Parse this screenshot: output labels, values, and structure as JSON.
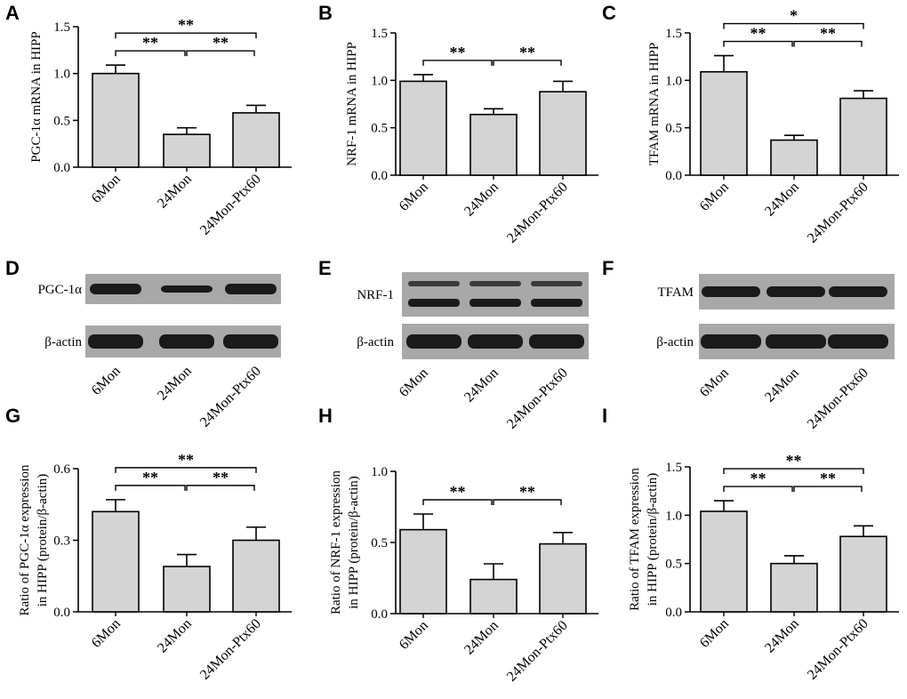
{
  "figure": {
    "panels_bar": [
      {
        "letter": "A",
        "ylabel": [
          "PGC-1α mRNA in HIPP"
        ]
      },
      {
        "letter": "B",
        "ylabel": [
          "NRF-1 mRNA in HIPP"
        ]
      },
      {
        "letter": "C",
        "ylabel": [
          "TFAM mRNA in HIPP"
        ]
      },
      {
        "letter": "G",
        "ylabel": [
          "Ratio of PGC-1α expression",
          "in HIPP (protein/β-actin)"
        ]
      },
      {
        "letter": "H",
        "ylabel": [
          "Ratio of NRF-1 expression",
          "in HIPP (protein/β-actin)"
        ]
      },
      {
        "letter": "I",
        "ylabel": [
          "Ratio of TFAM expression",
          "in HIPP (protein/β-actin)"
        ]
      }
    ],
    "panels_blot": [
      {
        "letter": "D",
        "target_label": "PGC-1α",
        "control_label": "β-actin"
      },
      {
        "letter": "E",
        "target_label": "NRF-1",
        "control_label": "β-actin"
      },
      {
        "letter": "F",
        "target_label": "TFAM",
        "control_label": "β-actin"
      }
    ]
  },
  "chart_data": [
    {
      "type": "bar",
      "categories": [
        "6Mon",
        "24Mon",
        "24Mon-Ptx60"
      ],
      "values": [
        1.0,
        0.35,
        0.58
      ],
      "errors": [
        0.09,
        0.07,
        0.08
      ],
      "ylim": [
        0,
        1.5
      ],
      "yticks": [
        "0.0",
        "0.5",
        "1.0",
        "1.5"
      ],
      "ylabel": "PGC-1α mRNA in HIPP",
      "significance": [
        {
          "from": 0,
          "to": 2,
          "label": "**"
        },
        {
          "from": 0,
          "to": 1,
          "label": "**"
        },
        {
          "from": 1,
          "to": 2,
          "label": "**"
        }
      ]
    },
    {
      "type": "bar",
      "categories": [
        "6Mon",
        "24Mon",
        "24Mon-Ptx60"
      ],
      "values": [
        0.99,
        0.64,
        0.88
      ],
      "errors": [
        0.07,
        0.06,
        0.11
      ],
      "ylim": [
        0,
        1.5
      ],
      "yticks": [
        "0.0",
        "0.5",
        "1.0",
        "1.5"
      ],
      "ylabel": "NRF-1 mRNA in HIPP",
      "significance": [
        {
          "from": 0,
          "to": 1,
          "label": "**"
        },
        {
          "from": 1,
          "to": 2,
          "label": "**"
        }
      ]
    },
    {
      "type": "bar",
      "categories": [
        "6Mon",
        "24Mon",
        "24Mon-Ptx60"
      ],
      "values": [
        1.09,
        0.37,
        0.81
      ],
      "errors": [
        0.17,
        0.05,
        0.08
      ],
      "ylim": [
        0,
        1.5
      ],
      "yticks": [
        "0.0",
        "0.5",
        "1.0",
        "1.5"
      ],
      "ylabel": "TFAM mRNA in HIPP",
      "significance": [
        {
          "from": 0,
          "to": 2,
          "label": "*"
        },
        {
          "from": 0,
          "to": 1,
          "label": "**"
        },
        {
          "from": 1,
          "to": 2,
          "label": "**"
        }
      ]
    },
    {
      "type": "bar",
      "categories": [
        "6Mon",
        "24Mon",
        "24Mon-Ptx60"
      ],
      "values": [
        0.42,
        0.19,
        0.3
      ],
      "errors": [
        0.05,
        0.05,
        0.055
      ],
      "ylim": [
        0,
        0.6
      ],
      "yticks": [
        "0.0",
        "0.3",
        "0.6"
      ],
      "ylabel": "Ratio of PGC-1α expression in HIPP (protein/β-actin)",
      "significance": [
        {
          "from": 0,
          "to": 2,
          "label": "**"
        },
        {
          "from": 0,
          "to": 1,
          "label": "**"
        },
        {
          "from": 1,
          "to": 2,
          "label": "**"
        }
      ]
    },
    {
      "type": "bar",
      "categories": [
        "6Mon",
        "24Mon",
        "24Mon-Ptx60"
      ],
      "values": [
        0.59,
        0.24,
        0.49
      ],
      "errors": [
        0.11,
        0.11,
        0.08
      ],
      "ylim": [
        0,
        1.0
      ],
      "yticks": [
        "0.0",
        "0.5",
        "1.0"
      ],
      "ylabel": "Ratio of NRF-1 expression in HIPP (protein/β-actin)",
      "significance": [
        {
          "from": 0,
          "to": 1,
          "label": "**"
        },
        {
          "from": 1,
          "to": 2,
          "label": "**"
        }
      ]
    },
    {
      "type": "bar",
      "categories": [
        "6Mon",
        "24Mon",
        "24Mon-Ptx60"
      ],
      "values": [
        1.04,
        0.5,
        0.78
      ],
      "errors": [
        0.11,
        0.08,
        0.11
      ],
      "ylim": [
        0,
        1.5
      ],
      "yticks": [
        "0.0",
        "0.5",
        "1.0",
        "1.5"
      ],
      "ylabel": "Ratio of TFAM expression in HIPP (protein/β-actin)",
      "significance": [
        {
          "from": 0,
          "to": 2,
          "label": "**"
        },
        {
          "from": 0,
          "to": 1,
          "label": "**"
        },
        {
          "from": 1,
          "to": 2,
          "label": "**"
        }
      ]
    }
  ],
  "blot_categories": [
    "6Mon",
    "24Mon",
    "24Mon-Ptx60"
  ],
  "colors": {
    "bar_fill": "#d4d4d4",
    "blot_bg": "#a8a8a8",
    "blot_band": "#1a1a1a"
  }
}
